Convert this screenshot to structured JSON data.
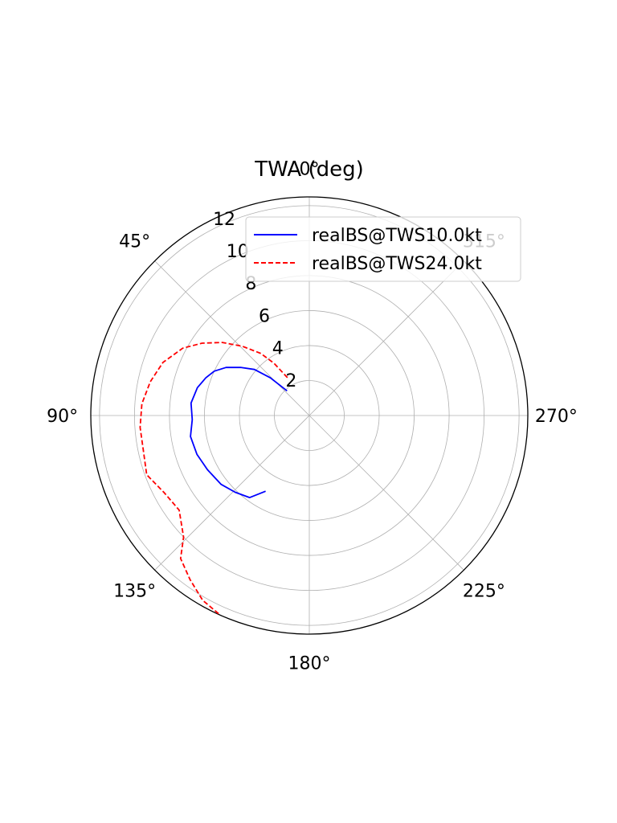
{
  "chart_data": {
    "type": "line",
    "subtype": "polar",
    "title": "TWA (deg)",
    "theta_direction": "counterclockwise",
    "theta_zero": "top",
    "angle_ticks": [
      "0°",
      "45°",
      "90°",
      "135°",
      "180°",
      "225°",
      "270°",
      "315°"
    ],
    "r_ticks": [
      "2",
      "4",
      "6",
      "8",
      "10",
      "12"
    ],
    "rlim": [
      0,
      12.5
    ],
    "grid": true,
    "legend_position": "top-right",
    "series": [
      {
        "name": "realBS@TWS10.0kt",
        "color": "#0000ff",
        "style": "solid",
        "points": [
          {
            "twa": 42,
            "bs": 1.9
          },
          {
            "twa": 46,
            "bs": 3.1
          },
          {
            "twa": 50,
            "bs": 4.1
          },
          {
            "twa": 55,
            "bs": 4.8
          },
          {
            "twa": 60,
            "bs": 5.5
          },
          {
            "twa": 65,
            "bs": 6.0
          },
          {
            "twa": 70,
            "bs": 6.3
          },
          {
            "twa": 76,
            "bs": 6.6
          },
          {
            "twa": 84,
            "bs": 6.8
          },
          {
            "twa": 92,
            "bs": 6.7
          },
          {
            "twa": 100,
            "bs": 6.9
          },
          {
            "twa": 109,
            "bs": 6.8
          },
          {
            "twa": 118,
            "bs": 6.6
          },
          {
            "twa": 128,
            "bs": 6.4
          },
          {
            "twa": 136,
            "bs": 6.1
          },
          {
            "twa": 144,
            "bs": 5.8
          },
          {
            "twa": 150,
            "bs": 5.0
          }
        ]
      },
      {
        "name": "realBS@TWS24.0kt",
        "color": "#ff0000",
        "style": "dashed",
        "points": [
          {
            "twa": 30,
            "bs": 2.5
          },
          {
            "twa": 34,
            "bs": 3.6
          },
          {
            "twa": 38,
            "bs": 4.5
          },
          {
            "twa": 44,
            "bs": 5.5
          },
          {
            "twa": 50,
            "bs": 6.5
          },
          {
            "twa": 56,
            "bs": 7.4
          },
          {
            "twa": 62,
            "bs": 8.2
          },
          {
            "twa": 70,
            "bs": 8.9
          },
          {
            "twa": 78,
            "bs": 9.3
          },
          {
            "twa": 86,
            "bs": 9.6
          },
          {
            "twa": 94,
            "bs": 9.7
          },
          {
            "twa": 102,
            "bs": 9.7
          },
          {
            "twa": 110,
            "bs": 9.9
          },
          {
            "twa": 118,
            "bs": 9.4
          },
          {
            "twa": 126,
            "bs": 9.2
          },
          {
            "twa": 134,
            "bs": 10.0
          },
          {
            "twa": 138,
            "bs": 11.0
          },
          {
            "twa": 144,
            "bs": 11.6
          },
          {
            "twa": 150,
            "bs": 12.2
          },
          {
            "twa": 156,
            "bs": 12.5
          }
        ]
      }
    ]
  }
}
